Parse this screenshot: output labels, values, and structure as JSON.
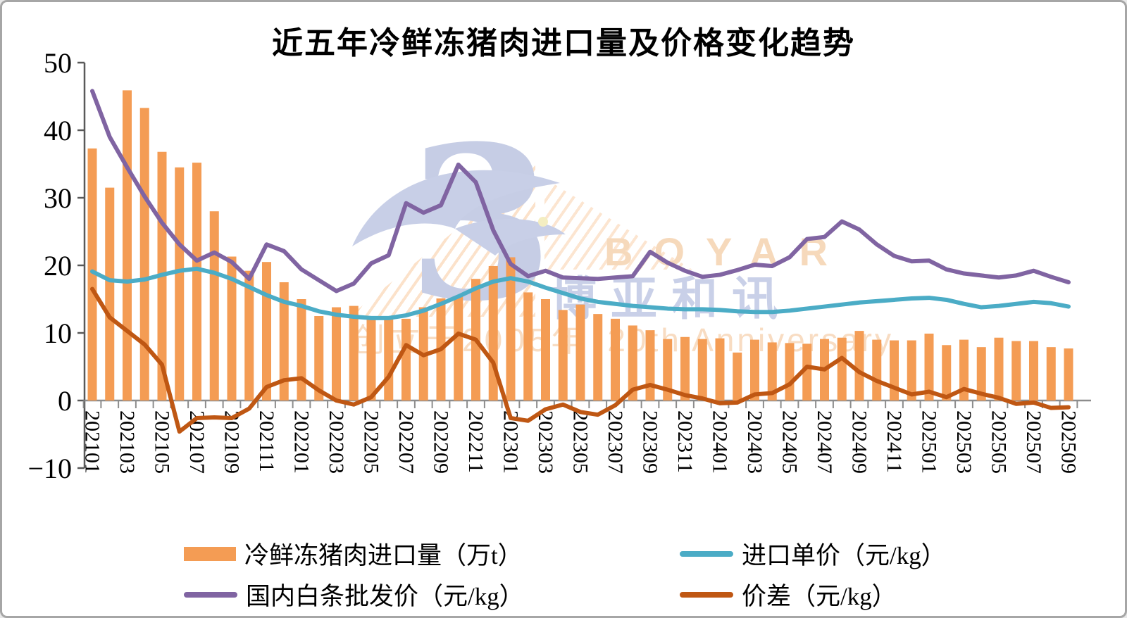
{
  "chart_data": {
    "type": "bar",
    "title": "近五年冷鲜冻猪肉进口量及价格变化趋势",
    "xlabel": "",
    "ylabel": "",
    "ylim": [
      -10,
      50
    ],
    "grid": false,
    "legend_position": "bottom",
    "y_axis": {
      "ticks": [
        50,
        40,
        30,
        20,
        10,
        0,
        -10
      ]
    },
    "x_label_every": 2,
    "months": [
      "202101",
      "202102",
      "202103",
      "202104",
      "202105",
      "202106",
      "202107",
      "202108",
      "202109",
      "202110",
      "202111",
      "202112",
      "202201",
      "202202",
      "202203",
      "202204",
      "202205",
      "202206",
      "202207",
      "202208",
      "202209",
      "202210",
      "202211",
      "202212",
      "202301",
      "202302",
      "202303",
      "202304",
      "202305",
      "202306",
      "202307",
      "202308",
      "202309",
      "202310",
      "202311",
      "202312",
      "202401",
      "202402",
      "202403",
      "202404",
      "202405",
      "202406",
      "202407",
      "202408",
      "202409",
      "202410",
      "202411",
      "202412",
      "202501",
      "202502",
      "202503",
      "202504",
      "202505",
      "202506",
      "202507",
      "202508",
      "202509"
    ],
    "series": [
      {
        "name": "冷鲜冻猪肉进口量（万t）",
        "type": "bar",
        "color": "#F49C54",
        "values": [
          37.3,
          31.5,
          45.9,
          43.3,
          36.8,
          34.5,
          35.2,
          28.0,
          21.3,
          19.2,
          20.5,
          17.5,
          15.0,
          12.5,
          13.8,
          14.0,
          12.4,
          12.5,
          12.1,
          13.8,
          15.1,
          15.4,
          18.0,
          19.9,
          21.2,
          16.0,
          15.0,
          13.4,
          14.2,
          12.8,
          12.1,
          11.1,
          10.4,
          9.1,
          9.4,
          9.1,
          9.2,
          7.1,
          9.0,
          8.6,
          8.5,
          8.4,
          9.1,
          9.3,
          10.3,
          9.0,
          8.9,
          8.9,
          9.9,
          8.2,
          9.0,
          7.9,
          9.3,
          8.8,
          8.8,
          7.9,
          7.7
        ]
      },
      {
        "name": "进口单价（元/kg）",
        "type": "line",
        "color": "#4BACC6",
        "values": [
          19.1,
          17.8,
          17.6,
          17.9,
          18.6,
          19.2,
          19.5,
          18.9,
          18.0,
          16.8,
          15.6,
          14.6,
          14.0,
          13.2,
          12.7,
          12.4,
          12.2,
          12.2,
          12.6,
          13.3,
          14.3,
          15.4,
          16.6,
          17.6,
          18.1,
          17.6,
          16.7,
          15.9,
          15.1,
          14.6,
          14.3,
          14.0,
          13.8,
          13.6,
          13.5,
          13.5,
          13.4,
          13.2,
          13.1,
          13.1,
          13.3,
          13.6,
          13.9,
          14.2,
          14.5,
          14.7,
          14.9,
          15.1,
          15.2,
          14.9,
          14.3,
          13.8,
          14.0,
          14.3,
          14.6,
          14.4,
          13.9
        ]
      },
      {
        "name": "国内白条批发价（元/kg）",
        "type": "line",
        "color": "#8064A2",
        "values": [
          45.8,
          39.0,
          34.5,
          30.2,
          26.3,
          23.1,
          20.7,
          21.9,
          20.5,
          18.0,
          23.1,
          22.1,
          19.4,
          17.8,
          16.2,
          17.3,
          20.3,
          21.5,
          29.2,
          27.8,
          28.9,
          34.9,
          32.3,
          25.2,
          20.2,
          18.4,
          19.2,
          18.2,
          18.1,
          18.0,
          18.2,
          18.4,
          22.0,
          20.4,
          19.2,
          18.3,
          18.6,
          19.3,
          20.1,
          19.9,
          21.2,
          23.9,
          24.2,
          26.5,
          25.3,
          23.1,
          21.4,
          20.6,
          20.7,
          19.4,
          18.8,
          18.5,
          18.2,
          18.5,
          19.2,
          18.3,
          17.5
        ]
      },
      {
        "name": "价差（元/kg）",
        "type": "line",
        "color": "#BF5713",
        "values": [
          16.5,
          12.3,
          10.3,
          8.3,
          5.3,
          -4.6,
          -2.6,
          -2.5,
          -2.6,
          -1.2,
          2.0,
          3.0,
          3.3,
          1.5,
          0.0,
          -0.6,
          0.5,
          3.5,
          8.2,
          6.7,
          7.6,
          9.9,
          9.0,
          5.6,
          -2.6,
          -3.0,
          -1.3,
          -0.6,
          -1.7,
          -2.1,
          -0.7,
          1.6,
          2.3,
          1.6,
          0.8,
          0.3,
          -0.4,
          -0.3,
          0.9,
          1.1,
          2.4,
          5.0,
          4.6,
          6.3,
          4.2,
          2.9,
          1.9,
          0.9,
          1.3,
          0.5,
          1.7,
          1.0,
          0.4,
          -0.5,
          -0.3,
          -1.1,
          -1.0
        ]
      }
    ],
    "watermark": {
      "bird_glyph": "3",
      "brand_en": "BOYAR",
      "brand_cn": "博亚和讯",
      "anniversary_cn": "创立于2005年",
      "anniversary_en": "20th Anniversary"
    }
  }
}
